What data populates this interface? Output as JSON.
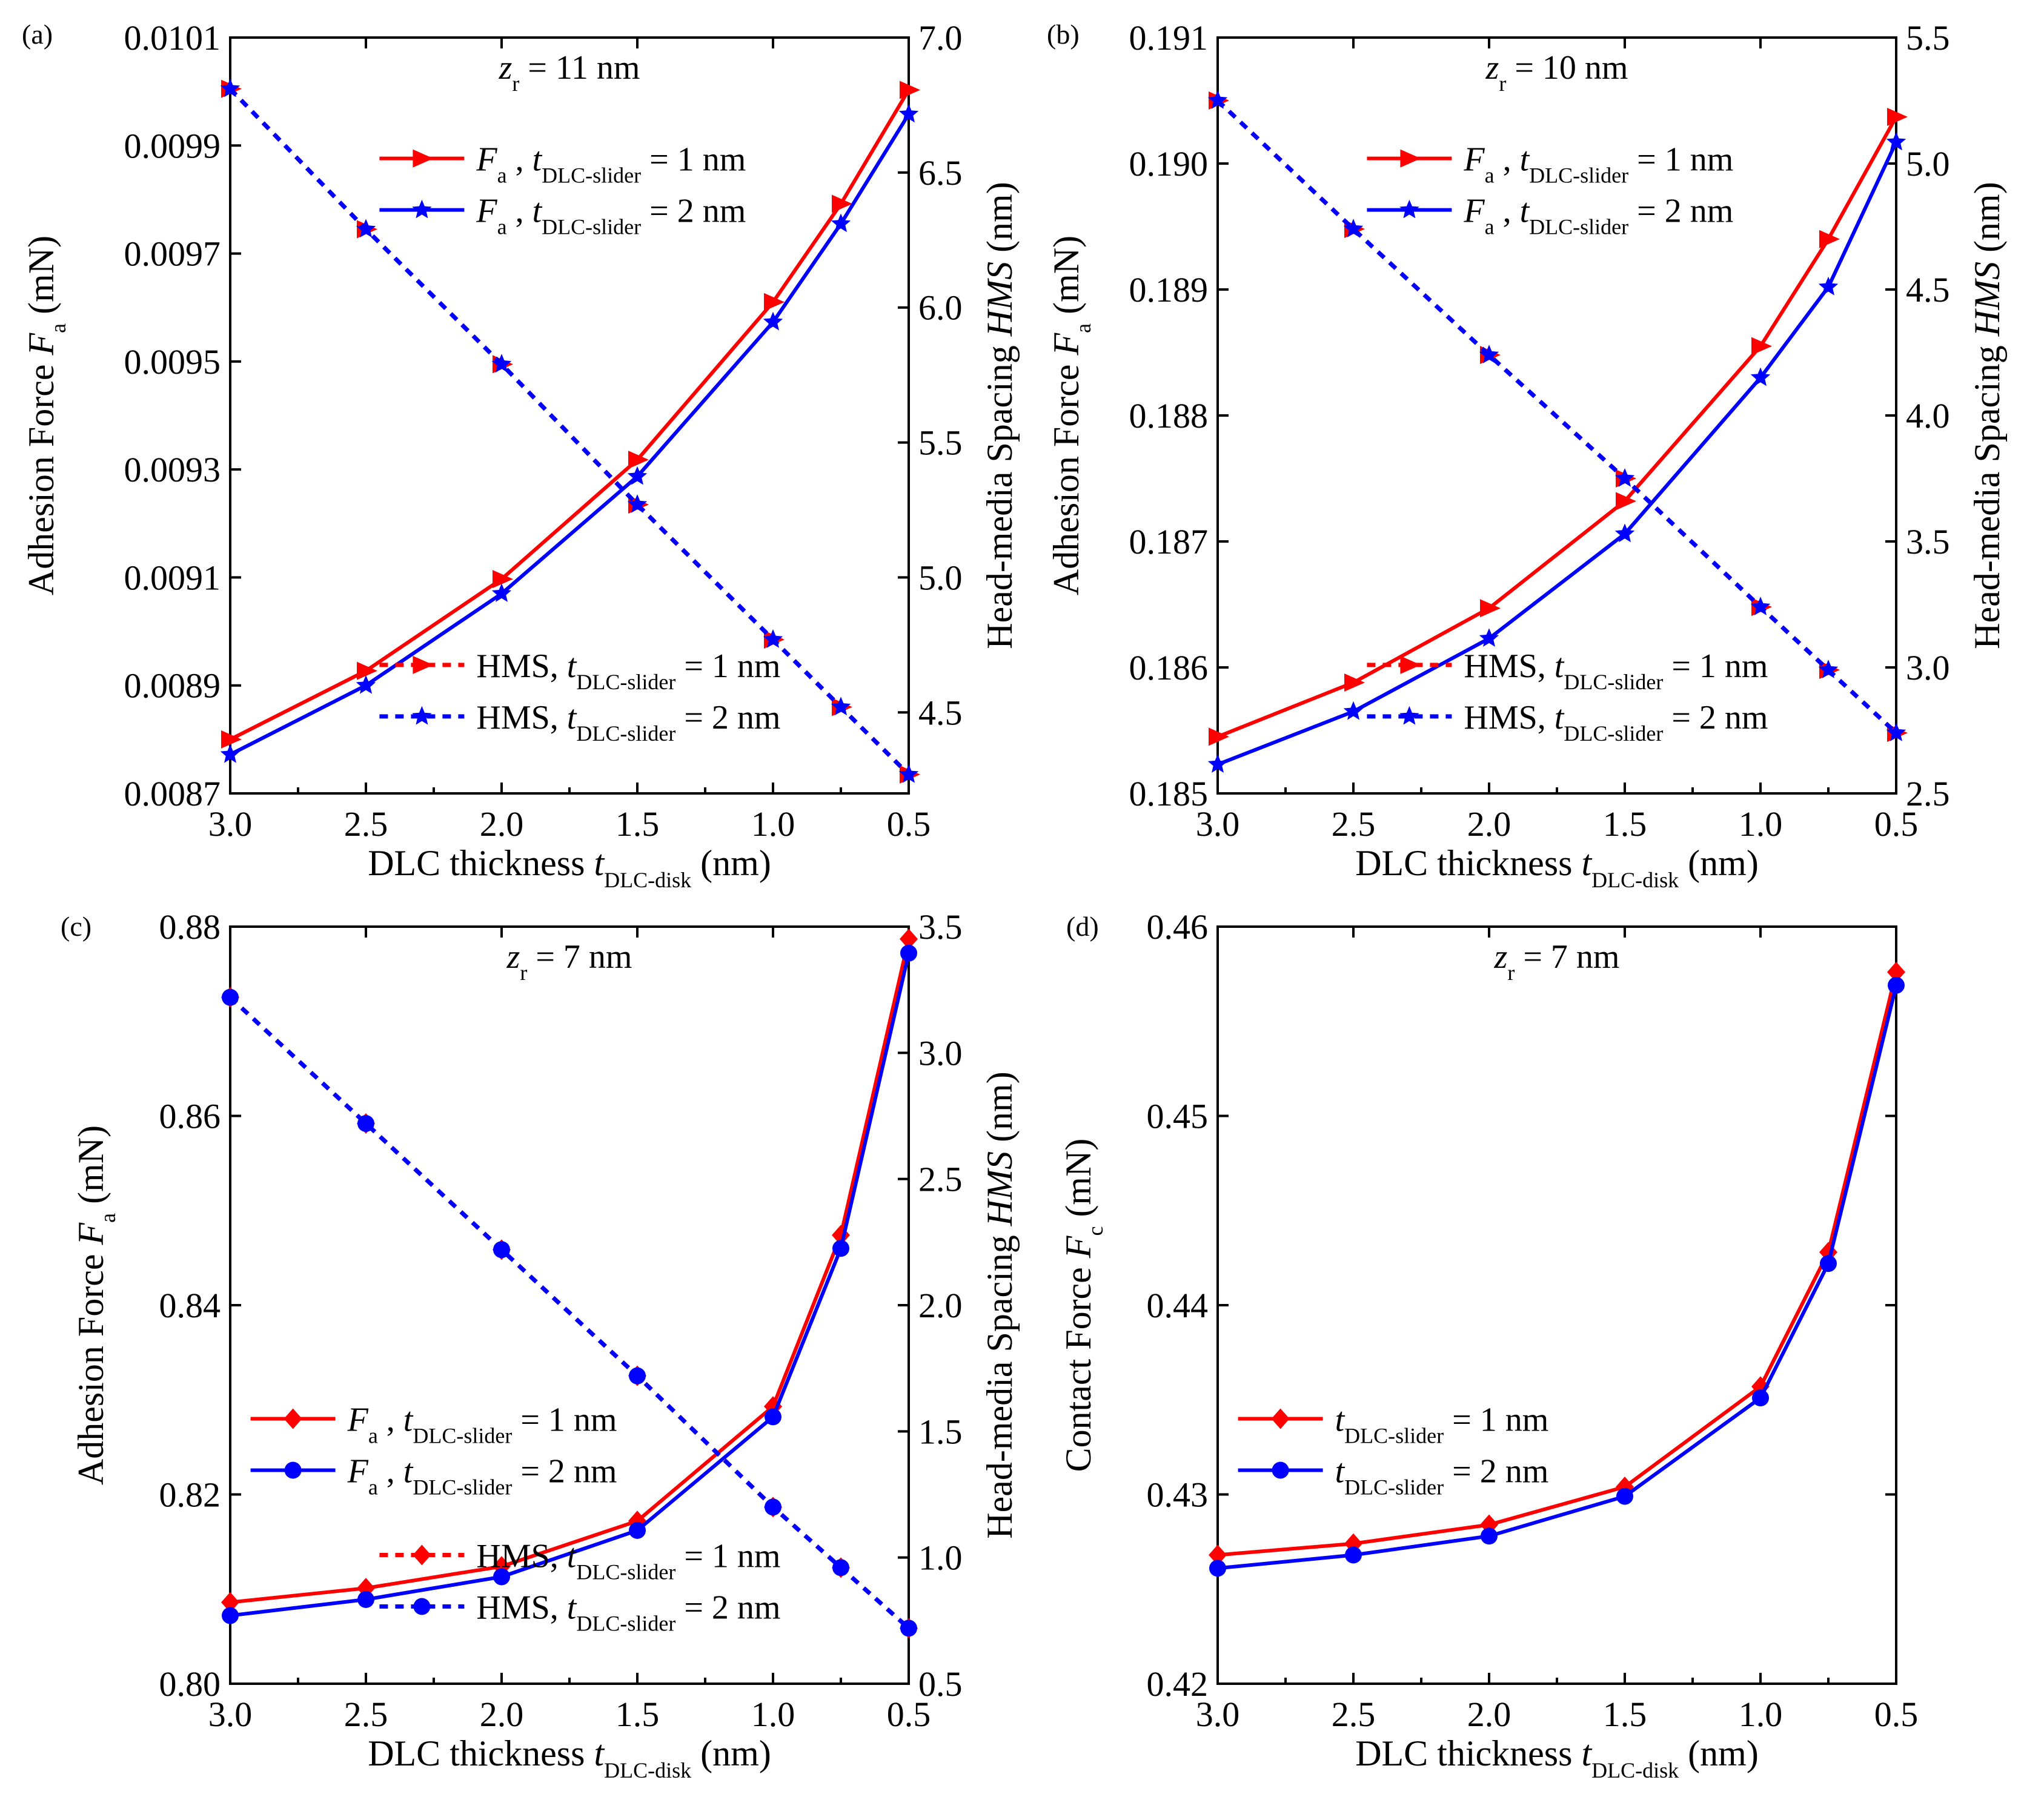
{
  "figure_title": "Adhesion force, contact force and head-media spacing versus DLC thickness",
  "chart_data": [
    {
      "type": "line",
      "panel_label": "(a)",
      "annotation": {
        "var": "z",
        "sub": "r",
        "value": "11 nm"
      },
      "xlabel": {
        "main": "DLC thickness ",
        "var": "t",
        "sub": "DLC-disk",
        "unit": " (nm)"
      },
      "ylabel_left": {
        "main": "Adhesion Force ",
        "var": "F",
        "sub": "a",
        "unit": " (mN)"
      },
      "ylabel_right": {
        "main": "Head-media Spacing ",
        "var": "HMS",
        "sub": "",
        "unit": " (nm)"
      },
      "xlim": [
        3.0,
        0.5
      ],
      "x_ticks": [
        3.0,
        2.5,
        2.0,
        1.5,
        1.0,
        0.5
      ],
      "x_tick_labels": [
        "3.0",
        "2.5",
        "2.0",
        "1.5",
        "1.0",
        "0.5"
      ],
      "ylim_left": [
        0.0087,
        0.0101
      ],
      "y_left_ticks": [
        0.0087,
        0.0089,
        0.0091,
        0.0093,
        0.0095,
        0.0097,
        0.0099,
        0.0101
      ],
      "y_left_tick_labels": [
        "0.0087",
        "0.0089",
        "0.0091",
        "0.0093",
        "0.0095",
        "0.0097",
        "0.0099",
        "0.0101"
      ],
      "ylim_right": [
        4.2,
        7.0
      ],
      "y_right_ticks": [
        4.5,
        5.0,
        5.5,
        6.0,
        6.5,
        7.0
      ],
      "y_right_tick_labels": [
        "4.5",
        "5.0",
        "5.5",
        "6.0",
        "6.5",
        "7.0"
      ],
      "x": [
        3.0,
        2.5,
        2.0,
        1.5,
        1.0,
        0.75,
        0.5
      ],
      "series": [
        {
          "name": "Fa, tDLC-slider = 1nm",
          "legend_prefix": "F",
          "legend_prefix_sub": "a",
          "legend_var": "t",
          "legend_var_sub": "DLC-slider",
          "legend_value": " = 1 nm",
          "axis": "left",
          "color": "#ff0000",
          "marker": "triangle-right",
          "dashed": false,
          "values": [
            0.0088,
            0.008927,
            0.009097,
            0.009318,
            0.00961,
            0.009792,
            0.010003
          ]
        },
        {
          "name": "Fa, tDLC-slider = 2nm",
          "legend_prefix": "F",
          "legend_prefix_sub": "a",
          "legend_var": "t",
          "legend_var_sub": "DLC-slider",
          "legend_value": " = 2 nm",
          "axis": "left",
          "color": "#0000ff",
          "marker": "star",
          "dashed": false,
          "values": [
            0.008772,
            0.0089,
            0.00907,
            0.009287,
            0.009573,
            0.009755,
            0.009958
          ]
        },
        {
          "name": "HMS, tDLC-slider = 1nm",
          "legend_prefix": "HMS, ",
          "legend_prefix_sub": "",
          "legend_var": "t",
          "legend_var_sub": "DLC-slider",
          "legend_value": " = 1 nm",
          "axis": "right",
          "color": "#ff0000",
          "marker": "triangle-right",
          "dashed": true,
          "values": [
            6.81,
            6.29,
            5.79,
            5.27,
            4.77,
            4.52,
            4.27
          ]
        },
        {
          "name": "HMS, tDLC-slider = 2nm",
          "legend_prefix": "HMS, ",
          "legend_prefix_sub": "",
          "legend_var": "t",
          "legend_var_sub": "DLC-slider",
          "legend_value": " = 2 nm",
          "axis": "right",
          "color": "#0000ff",
          "marker": "star",
          "dashed": true,
          "values": [
            6.81,
            6.29,
            5.79,
            5.27,
            4.77,
            4.52,
            4.27
          ]
        }
      ],
      "legends": [
        {
          "position": "upper-middle",
          "series": [
            0,
            1
          ]
        },
        {
          "position": "lower-middle",
          "series": [
            2,
            3
          ]
        }
      ]
    },
    {
      "type": "line",
      "panel_label": "(b)",
      "annotation": {
        "var": "z",
        "sub": "r",
        "value": "10 nm"
      },
      "xlabel": {
        "main": "DLC thickness ",
        "var": "t",
        "sub": "DLC-disk",
        "unit": " (nm)"
      },
      "ylabel_left": {
        "main": "Adhesion Force ",
        "var": "F",
        "sub": "a",
        "unit": " (mN)"
      },
      "ylabel_right": {
        "main": "Head-media Spacing ",
        "var": "HMS",
        "sub": "",
        "unit": " (nm)"
      },
      "xlim": [
        3.0,
        0.5
      ],
      "x_ticks": [
        3.0,
        2.5,
        2.0,
        1.5,
        1.0,
        0.5
      ],
      "x_tick_labels": [
        "3.0",
        "2.5",
        "2.0",
        "1.5",
        "1.0",
        "0.5"
      ],
      "ylim_left": [
        0.185,
        0.191
      ],
      "y_left_ticks": [
        0.185,
        0.186,
        0.187,
        0.188,
        0.189,
        0.19,
        0.191
      ],
      "y_left_tick_labels": [
        "0.185",
        "0.186",
        "0.187",
        "0.188",
        "0.189",
        "0.190",
        "0.191"
      ],
      "ylim_right": [
        2.5,
        5.5
      ],
      "y_right_ticks": [
        2.5,
        3.0,
        3.5,
        4.0,
        4.5,
        5.0,
        5.5
      ],
      "y_right_tick_labels": [
        "2.5",
        "3.0",
        "3.5",
        "4.0",
        "4.5",
        "5.0",
        "5.5"
      ],
      "x": [
        3.0,
        2.5,
        2.0,
        1.5,
        1.0,
        0.75,
        0.5
      ],
      "series": [
        {
          "name": "Fa, tDLC-slider = 1nm",
          "legend_prefix": "F",
          "legend_prefix_sub": "a",
          "legend_var": "t",
          "legend_var_sub": "DLC-slider",
          "legend_value": " = 1 nm",
          "axis": "left",
          "color": "#ff0000",
          "marker": "triangle-right",
          "dashed": false,
          "values": [
            0.18545,
            0.18588,
            0.18647,
            0.18732,
            0.18855,
            0.1894,
            0.19037
          ]
        },
        {
          "name": "Fa, tDLC-slider = 2nm",
          "legend_prefix": "F",
          "legend_prefix_sub": "a",
          "legend_var": "t",
          "legend_var_sub": "DLC-slider",
          "legend_value": " = 2 nm",
          "axis": "left",
          "color": "#0000ff",
          "marker": "star",
          "dashed": false,
          "values": [
            0.18523,
            0.18565,
            0.18623,
            0.18706,
            0.1883,
            0.18902,
            0.19017
          ]
        },
        {
          "name": "HMS, tDLC-slider = 1nm",
          "legend_prefix": "HMS, ",
          "legend_prefix_sub": "",
          "legend_var": "t",
          "legend_var_sub": "DLC-slider",
          "legend_value": " = 1 nm",
          "axis": "right",
          "color": "#ff0000",
          "marker": "triangle-right",
          "dashed": true,
          "values": [
            5.25,
            4.74,
            4.24,
            3.75,
            3.24,
            2.99,
            2.74
          ]
        },
        {
          "name": "HMS, tDLC-slider = 2nm",
          "legend_prefix": "HMS, ",
          "legend_prefix_sub": "",
          "legend_var": "t",
          "legend_var_sub": "DLC-slider",
          "legend_value": " = 2 nm",
          "axis": "right",
          "color": "#0000ff",
          "marker": "star",
          "dashed": true,
          "values": [
            5.25,
            4.74,
            4.24,
            3.75,
            3.24,
            2.99,
            2.74
          ]
        }
      ],
      "legends": [
        {
          "position": "upper-middle",
          "series": [
            0,
            1
          ]
        },
        {
          "position": "lower-middle",
          "series": [
            2,
            3
          ]
        }
      ]
    },
    {
      "type": "line",
      "panel_label": "(c)",
      "annotation": {
        "var": "z",
        "sub": "r",
        "value": "7 nm"
      },
      "xlabel": {
        "main": "DLC thickness ",
        "var": "t",
        "sub": "DLC-disk",
        "unit": " (nm)"
      },
      "ylabel_left": {
        "main": "Adhesion Force ",
        "var": "F",
        "sub": "a",
        "unit": " (mN)"
      },
      "ylabel_right": {
        "main": "Head-media Spacing ",
        "var": "HMS",
        "sub": "",
        "unit": " (nm)"
      },
      "xlim": [
        3.0,
        0.5
      ],
      "x_ticks": [
        3.0,
        2.5,
        2.0,
        1.5,
        1.0,
        0.5
      ],
      "x_tick_labels": [
        "3.0",
        "2.5",
        "2.0",
        "1.5",
        "1.0",
        "0.5"
      ],
      "ylim_left": [
        0.8,
        0.88
      ],
      "y_left_ticks": [
        0.8,
        0.82,
        0.84,
        0.86,
        0.88
      ],
      "y_left_tick_labels": [
        "0.80",
        "0.82",
        "0.84",
        "0.86",
        "0.88"
      ],
      "ylim_right": [
        0.5,
        3.5
      ],
      "y_right_ticks": [
        0.5,
        1.0,
        1.5,
        2.0,
        2.5,
        3.0,
        3.5
      ],
      "y_right_tick_labels": [
        "0.5",
        "1.0",
        "1.5",
        "2.0",
        "2.5",
        "3.0",
        "3.5"
      ],
      "x": [
        3.0,
        2.5,
        2.0,
        1.5,
        1.0,
        0.75,
        0.5
      ],
      "series": [
        {
          "name": "Fa, tDLC-slider = 1nm",
          "legend_prefix": "F",
          "legend_prefix_sub": "a",
          "legend_var": "t",
          "legend_var_sub": "DLC-slider",
          "legend_value": " = 1 nm",
          "axis": "left",
          "color": "#ff0000",
          "marker": "diamond",
          "dashed": false,
          "values": [
            0.8086,
            0.8101,
            0.8124,
            0.8172,
            0.8293,
            0.8474,
            0.8787
          ]
        },
        {
          "name": "Fa, tDLC-slider = 2nm",
          "legend_prefix": "F",
          "legend_prefix_sub": "a",
          "legend_var": "t",
          "legend_var_sub": "DLC-slider",
          "legend_value": " = 2 nm",
          "axis": "left",
          "color": "#0000ff",
          "marker": "circle",
          "dashed": false,
          "values": [
            0.8072,
            0.8089,
            0.8113,
            0.8162,
            0.8282,
            0.846,
            0.8772
          ]
        },
        {
          "name": "HMS, tDLC-slider = 1nm",
          "legend_prefix": "HMS, ",
          "legend_prefix_sub": "",
          "legend_var": "t",
          "legend_var_sub": "DLC-slider",
          "legend_value": " = 1 nm",
          "axis": "right",
          "color": "#ff0000",
          "marker": "diamond",
          "dashed": true,
          "values": [
            3.22,
            2.72,
            2.22,
            1.72,
            1.2,
            0.96,
            0.72
          ]
        },
        {
          "name": "HMS, tDLC-slider = 2nm",
          "legend_prefix": "HMS, ",
          "legend_prefix_sub": "",
          "legend_var": "t",
          "legend_var_sub": "DLC-slider",
          "legend_value": " = 2 nm",
          "axis": "right",
          "color": "#0000ff",
          "marker": "circle",
          "dashed": true,
          "values": [
            3.22,
            2.72,
            2.22,
            1.72,
            1.2,
            0.96,
            0.72
          ]
        }
      ],
      "legends": [
        {
          "position": "middle-left",
          "series": [
            0,
            1
          ]
        },
        {
          "position": "lower-middle",
          "series": [
            2,
            3
          ]
        }
      ]
    },
    {
      "type": "line",
      "panel_label": "(d)",
      "annotation": {
        "var": "z",
        "sub": "r",
        "value": "7 nm"
      },
      "xlabel": {
        "main": "DLC thickness ",
        "var": "t",
        "sub": "DLC-disk",
        "unit": " (nm)"
      },
      "ylabel_left": {
        "main": "Contact Force ",
        "var": "F",
        "sub": "c",
        "unit": " (mN)"
      },
      "xlim": [
        3.0,
        0.5
      ],
      "x_ticks": [
        3.0,
        2.5,
        2.0,
        1.5,
        1.0,
        0.5
      ],
      "x_tick_labels": [
        "3.0",
        "2.5",
        "2.0",
        "1.5",
        "1.0",
        "0.5"
      ],
      "ylim_left": [
        0.42,
        0.46
      ],
      "y_left_ticks": [
        0.42,
        0.43,
        0.44,
        0.45,
        0.46
      ],
      "y_left_tick_labels": [
        "0.42",
        "0.43",
        "0.44",
        "0.45",
        "0.46"
      ],
      "x": [
        3.0,
        2.5,
        2.0,
        1.5,
        1.0,
        0.75,
        0.5
      ],
      "series": [
        {
          "name": "tDLC-slider = 1nm",
          "legend_prefix": "",
          "legend_prefix_sub": "",
          "legend_var": "t",
          "legend_var_sub": "DLC-slider",
          "legend_value": " = 1 nm",
          "axis": "left",
          "color": "#ff0000",
          "marker": "diamond",
          "dashed": false,
          "values": [
            0.4268,
            0.4274,
            0.4284,
            0.4304,
            0.4357,
            0.4428,
            0.4576
          ]
        },
        {
          "name": "tDLC-slider = 2nm",
          "legend_prefix": "",
          "legend_prefix_sub": "",
          "legend_var": "t",
          "legend_var_sub": "DLC-slider",
          "legend_value": " = 2 nm",
          "axis": "left",
          "color": "#0000ff",
          "marker": "circle",
          "dashed": false,
          "values": [
            0.4261,
            0.4268,
            0.4278,
            0.4299,
            0.4351,
            0.4422,
            0.4569
          ]
        }
      ],
      "legends": [
        {
          "position": "middle-left",
          "series": [
            0,
            1
          ]
        }
      ]
    }
  ]
}
